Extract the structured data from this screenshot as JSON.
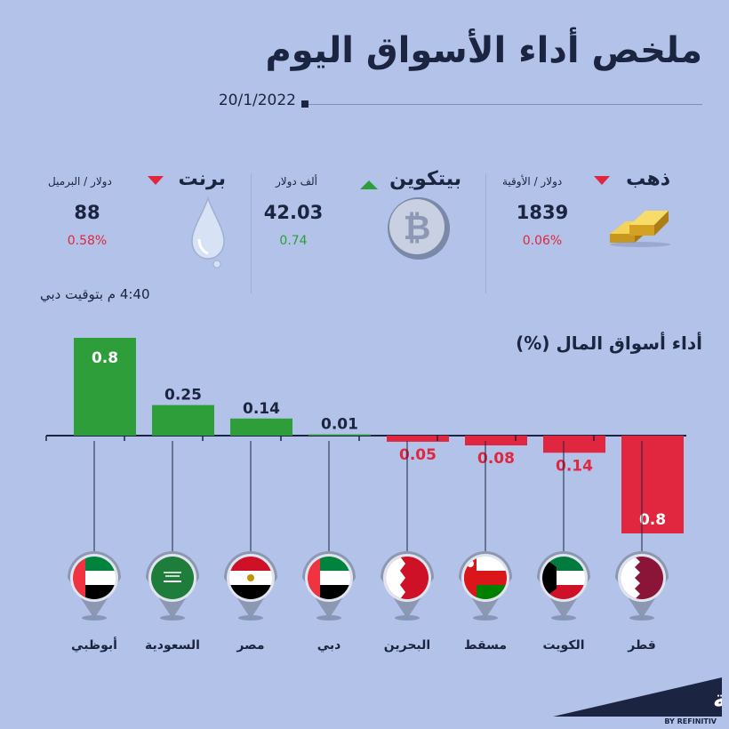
{
  "title": "ملخص أداء الأسواق اليوم",
  "date": "20/1/2022",
  "tickers": [
    {
      "name": "ذهب",
      "unit": "دولار / الأوقية",
      "value": "1839",
      "change": "0.06%",
      "direction": "down",
      "icon": "gold-bars-icon"
    },
    {
      "name": "بيتكوين",
      "unit": "ألف دولار",
      "value": "42.03",
      "change": "0.74",
      "direction": "up",
      "icon": "bitcoin-icon"
    },
    {
      "name": "برنت",
      "unit": "دولار / البرميل",
      "value": "88",
      "change": "0.58%",
      "direction": "down",
      "icon": "oil-drop-icon"
    }
  ],
  "time_note": "4:40 م بتوقيت دبي",
  "colors": {
    "positive": "#2e9e3a",
    "negative": "#e0273f",
    "background": "#b3c2e8",
    "text": "#1b2440"
  },
  "chart_data": {
    "type": "bar",
    "title": "أداء أسواق المال (%)",
    "categories": [
      "أبوظبي",
      "السعودية",
      "مصر",
      "دبي",
      "البحرين",
      "مسقط",
      "الكويت",
      "قطر"
    ],
    "values": [
      0.8,
      0.25,
      0.14,
      0.01,
      -0.05,
      -0.08,
      -0.14,
      -0.8
    ],
    "labels": [
      "0.8",
      "0.25",
      "0.14",
      "0.01",
      "0.05",
      "0.08",
      "0.14",
      "0.8"
    ],
    "flags": [
      "uae-flag-icon",
      "saudi-flag-icon",
      "egypt-flag-icon",
      "uae-flag-icon",
      "bahrain-flag-icon",
      "oman-flag-icon",
      "kuwait-flag-icon",
      "qatar-flag-icon"
    ],
    "ylim": [
      -0.8,
      0.8
    ]
  },
  "logo": {
    "name": "زاوية",
    "by": "BY REFINITIV"
  }
}
